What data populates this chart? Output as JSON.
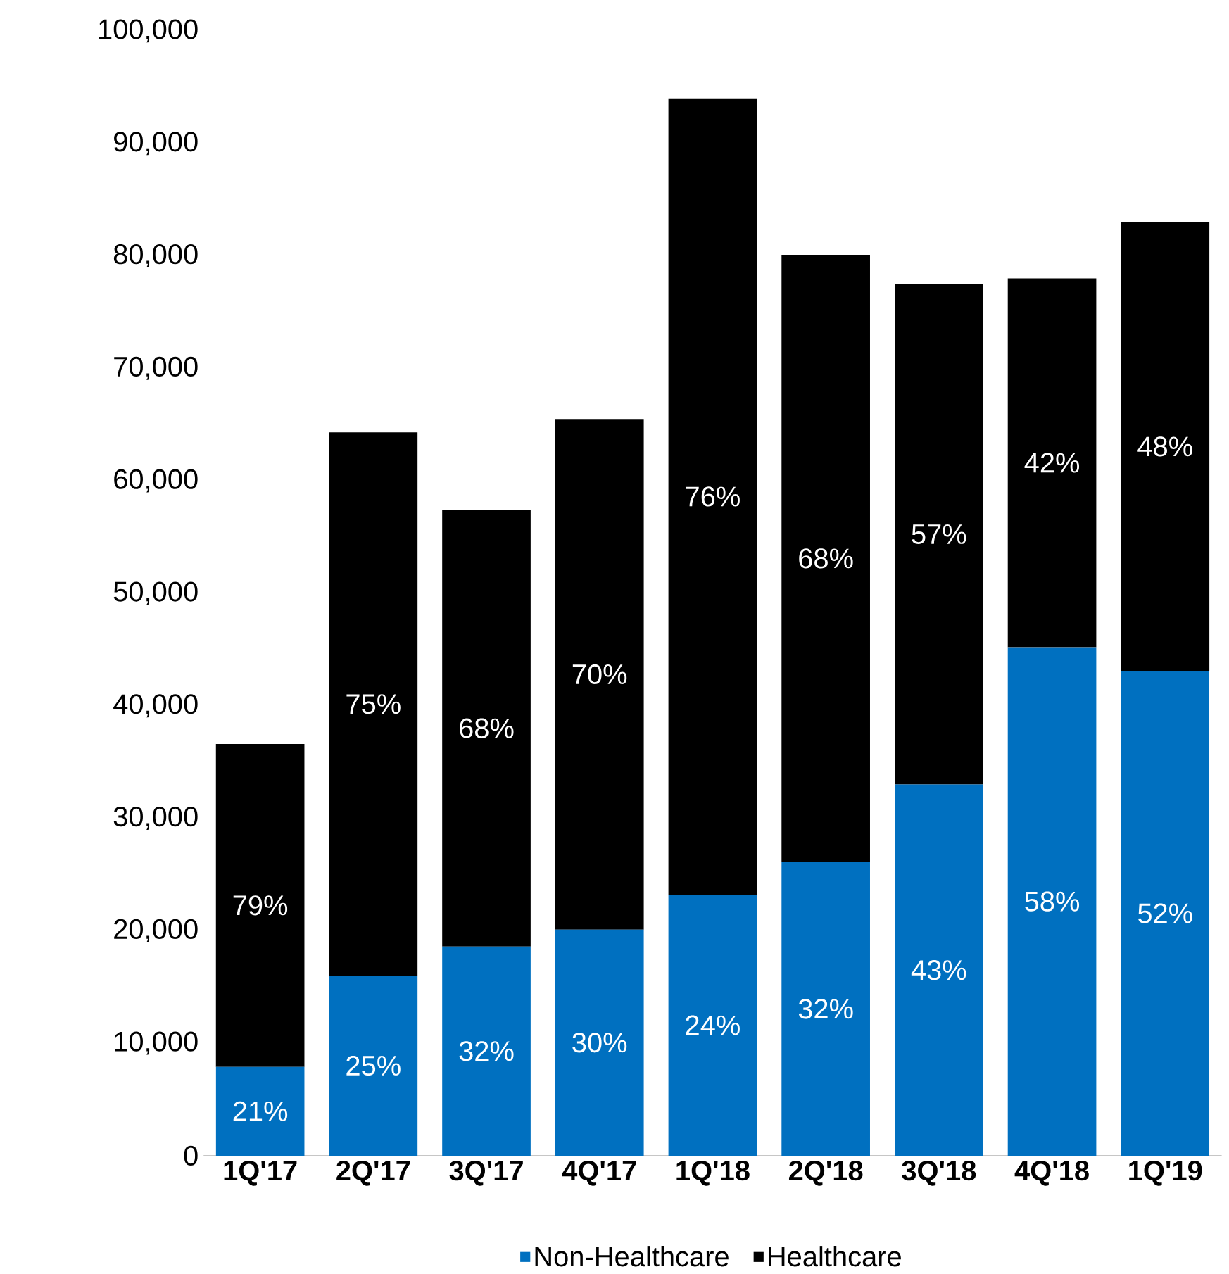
{
  "chart_data": {
    "type": "bar",
    "stacked": true,
    "categories": [
      "1Q'17",
      "2Q'17",
      "3Q'17",
      "4Q'17",
      "1Q'18",
      "2Q'18",
      "3Q'18",
      "4Q'18",
      "1Q'19"
    ],
    "series": [
      {
        "name": "Non-Healthcare",
        "color": "#0070c0",
        "values": [
          7900,
          16000,
          18600,
          20100,
          23200,
          26100,
          33000,
          45200,
          43100
        ]
      },
      {
        "name": "Healthcare",
        "color": "#000000",
        "values": [
          28700,
          48300,
          38800,
          45400,
          70800,
          54000,
          44500,
          32800,
          39900
        ]
      }
    ],
    "annotations": [
      "21%",
      "25%",
      "32%",
      "30%",
      "24%",
      "32%",
      "43%",
      "58%",
      "52%",
      "79%",
      "75%",
      "68%",
      "70%",
      "76%",
      "68%",
      "57%",
      "42%",
      "48%"
    ],
    "ylim": [
      0,
      100000
    ],
    "yticks": [
      0,
      {
        "value": 10000,
        "label": "10,000"
      },
      {
        "value": 20000,
        "label": "20,000"
      },
      {
        "value": 30000,
        "label": "30,000"
      },
      {
        "value": 40000,
        "label": "40,000"
      },
      {
        "value": 50000,
        "label": "50,000"
      },
      {
        "value": 60000,
        "label": "60,000"
      },
      {
        "value": 70000,
        "label": "70,000"
      },
      {
        "value": 80000,
        "label": "80,000"
      },
      {
        "value": 90000,
        "label": "90,000"
      },
      {
        "value": 100000,
        "label": "100,000"
      }
    ],
    "grid": false,
    "legend": "bottom"
  }
}
